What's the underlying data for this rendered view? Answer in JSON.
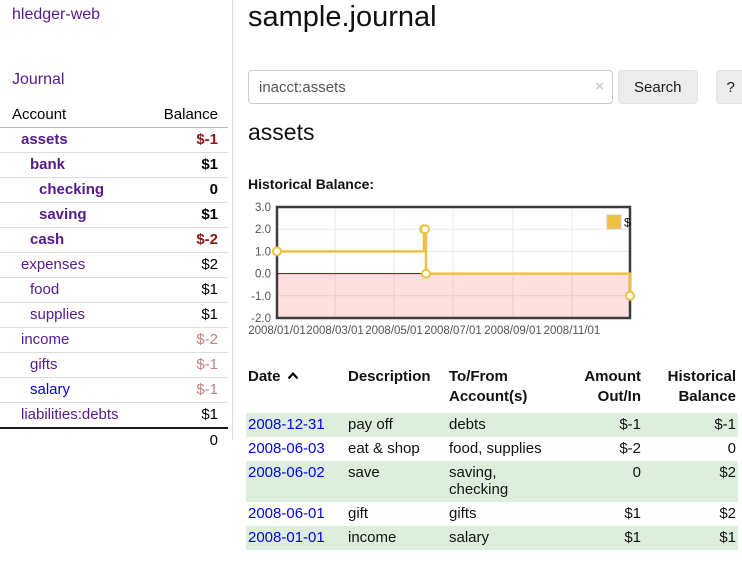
{
  "colors": {
    "link_purple": "#551a8b",
    "link_blue": "#0000ee",
    "negative_dark": "#8b1717",
    "negative_light": "#c47e7e",
    "stripe_green": "#ddeedd"
  },
  "sidebar": {
    "brand": "hledger-web",
    "journal_link": "Journal",
    "accounts_header": {
      "account": "Account",
      "balance": "Balance"
    },
    "accounts": [
      {
        "name": "assets",
        "balance": "$-1"
      },
      {
        "name": "bank",
        "balance": "$1"
      },
      {
        "name": "checking",
        "balance": "0"
      },
      {
        "name": "saving",
        "balance": "$1"
      },
      {
        "name": "cash",
        "balance": "$-2"
      },
      {
        "name": "expenses",
        "balance": "$2"
      },
      {
        "name": "food",
        "balance": "$1"
      },
      {
        "name": "supplies",
        "balance": "$1"
      },
      {
        "name": "income",
        "balance": "$-2"
      },
      {
        "name": "gifts",
        "balance": "$-1"
      },
      {
        "name": "salary",
        "balance": "$-1"
      },
      {
        "name": "liabilities:debts",
        "balance": "$1"
      }
    ],
    "total": "0"
  },
  "main": {
    "title": "sample.journal",
    "search": {
      "value": "inacct:assets",
      "clear_icon": "×",
      "button_label": "Search",
      "help_label": "?"
    },
    "account_heading": "assets",
    "chart_label": "Historical Balance:",
    "register": {
      "headers": {
        "date": "Date",
        "description": "Description",
        "tofrom_line1": "To/From",
        "tofrom_line2": "Account(s)",
        "amount_line1": "Amount",
        "amount_line2": "Out/In",
        "balance_line1": "Historical",
        "balance_line2": "Balance"
      },
      "rows": [
        {
          "date": "2008-12-31",
          "description": "pay off",
          "accounts": "debts",
          "amount": "$-1",
          "balance": "$-1"
        },
        {
          "date": "2008-06-03",
          "description": "eat & shop",
          "accounts": "food, supplies",
          "amount": "$-2",
          "balance": "0"
        },
        {
          "date": "2008-06-02",
          "description": "save",
          "accounts": "saving, checking",
          "amount": "0",
          "balance": "$2"
        },
        {
          "date": "2008-06-01",
          "description": "gift",
          "accounts": "gifts",
          "amount": "$1",
          "balance": "$2"
        },
        {
          "date": "2008-01-01",
          "description": "income",
          "accounts": "salary",
          "amount": "$1",
          "balance": "$1"
        }
      ]
    }
  },
  "chart_data": {
    "type": "line",
    "title": "Historical Balance",
    "interpolation": "steps",
    "x_range": [
      "2008/01/01",
      "2008/12/31"
    ],
    "ylim": [
      -2,
      3
    ],
    "series": [
      {
        "name": "$",
        "color": "#edc240",
        "points": [
          [
            "2008/01/01",
            1
          ],
          [
            "2008/06/01",
            2
          ],
          [
            "2008/06/02",
            2
          ],
          [
            "2008/06/03",
            0
          ],
          [
            "2008/12/31",
            -1
          ]
        ]
      }
    ],
    "yticks": [
      {
        "v": 3,
        "label": "3.0"
      },
      {
        "v": 2,
        "label": "2.0"
      },
      {
        "v": 1,
        "label": "1.0"
      },
      {
        "v": 0,
        "label": "0.0"
      },
      {
        "v": -1,
        "label": "-1.0"
      },
      {
        "v": -2,
        "label": "-2.0"
      }
    ],
    "xticks": [
      {
        "v": "2008/01/01",
        "label": "2008/01/01"
      },
      {
        "v": "2008/03/01",
        "label": "2008/03/01"
      },
      {
        "v": "2008/05/01",
        "label": "2008/05/01"
      },
      {
        "v": "2008/07/01",
        "label": "2008/07/01"
      },
      {
        "v": "2008/09/01",
        "label": "2008/09/01"
      },
      {
        "v": "2008/11/01",
        "label": "2008/11/01"
      }
    ],
    "legend": {
      "label": "$",
      "position": "top-right"
    },
    "negative_region_below": 0,
    "region_fill": "rgba(255,0,0,0.12)",
    "zero_line_color": "#8b0000",
    "grid": true
  }
}
